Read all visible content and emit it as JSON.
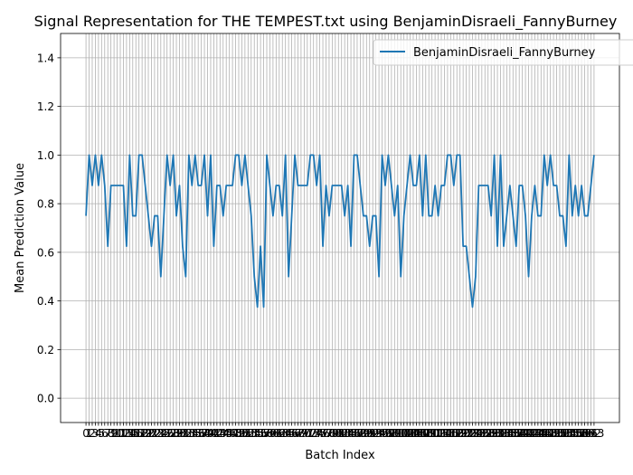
{
  "chart_data": {
    "type": "line",
    "title": "Signal Representation for THE TEMPEST.txt using BenjaminDisraeli_FannyBurney",
    "xlabel": "Batch Index",
    "ylabel": "Mean Prediction Value",
    "x": [
      0,
      1,
      2,
      3,
      4,
      5,
      6,
      7,
      8,
      9,
      10,
      11,
      12,
      13,
      14,
      15,
      16,
      17,
      18,
      19,
      20,
      21,
      22,
      23,
      24,
      25,
      26,
      27,
      28,
      29,
      30,
      31,
      32,
      33,
      34,
      35,
      36,
      37,
      38,
      39,
      40,
      41,
      42,
      43,
      44,
      45,
      46,
      47,
      48,
      49,
      50,
      51,
      52,
      53,
      54,
      55,
      56,
      57,
      58,
      59,
      60,
      61,
      62,
      63,
      64,
      65,
      66,
      67,
      68,
      69,
      70,
      71,
      72,
      73,
      74,
      75,
      76,
      77,
      78,
      79,
      80,
      81,
      82,
      83,
      84,
      85,
      86,
      87,
      88,
      89,
      90,
      91,
      92,
      93,
      94,
      95,
      96,
      97,
      98,
      99,
      100,
      101,
      102,
      103,
      104,
      105,
      106,
      107,
      108,
      109,
      110,
      111,
      112,
      113,
      114,
      115,
      116,
      117,
      118,
      119,
      120,
      121,
      122,
      123,
      124,
      125,
      126,
      127,
      128,
      129,
      130,
      131,
      132,
      133,
      134,
      135,
      136,
      137,
      138,
      139,
      140,
      141,
      142,
      143,
      144,
      145,
      146,
      147,
      148,
      149,
      150,
      151,
      152,
      153,
      154,
      155,
      156,
      157,
      158,
      159,
      160,
      161,
      162,
      163
    ],
    "series": [
      {
        "name": "BenjaminDisraeli_FannyBurney",
        "color": "#1f77b4",
        "values": [
          0.75,
          1.0,
          0.875,
          1.0,
          0.875,
          1.0,
          0.875,
          0.625,
          0.875,
          0.875,
          0.875,
          0.875,
          0.875,
          0.625,
          1.0,
          0.75,
          0.75,
          1.0,
          1.0,
          0.875,
          0.75,
          0.625,
          0.75,
          0.75,
          0.5,
          0.75,
          1.0,
          0.875,
          1.0,
          0.75,
          0.875,
          0.625,
          0.5,
          1.0,
          0.875,
          1.0,
          0.875,
          0.875,
          1.0,
          0.75,
          1.0,
          0.625,
          0.875,
          0.875,
          0.75,
          0.875,
          0.875,
          0.875,
          1.0,
          1.0,
          0.875,
          1.0,
          0.875,
          0.75,
          0.5,
          0.375,
          0.625,
          0.375,
          1.0,
          0.875,
          0.75,
          0.875,
          0.875,
          0.75,
          1.0,
          0.5,
          0.75,
          1.0,
          0.875,
          0.875,
          0.875,
          0.875,
          1.0,
          1.0,
          0.875,
          1.0,
          0.625,
          0.875,
          0.75,
          0.875,
          0.875,
          0.875,
          0.875,
          0.75,
          0.875,
          0.625,
          1.0,
          1.0,
          0.875,
          0.75,
          0.75,
          0.625,
          0.75,
          0.75,
          0.5,
          1.0,
          0.875,
          1.0,
          0.875,
          0.75,
          0.875,
          0.5,
          0.75,
          0.875,
          1.0,
          0.875,
          0.875,
          1.0,
          0.75,
          1.0,
          0.75,
          0.75,
          0.875,
          0.75,
          0.875,
          0.875,
          1.0,
          1.0,
          0.875,
          1.0,
          1.0,
          0.625,
          0.625,
          0.5,
          0.375,
          0.5,
          0.875,
          0.875,
          0.875,
          0.875,
          0.75,
          1.0,
          0.625,
          1.0,
          0.625,
          0.75,
          0.875,
          0.75,
          0.625,
          0.875,
          0.875,
          0.75,
          0.5,
          0.75,
          0.875,
          0.75,
          0.75,
          1.0,
          0.875,
          1.0,
          0.875,
          0.875,
          0.75,
          0.75,
          0.625,
          1.0,
          0.75,
          0.875,
          0.75,
          0.875,
          0.75,
          0.75,
          0.875,
          1.0
        ]
      }
    ],
    "xlim": [
      -8.15,
      171.15
    ],
    "ylim": [
      -0.1,
      1.5
    ],
    "yticks": [
      {
        "value": 0,
        "label": "0.0"
      },
      0.2,
      0.4,
      0.6,
      0.8,
      {
        "value": 1,
        "label": "1.0"
      },
      1.2,
      1.4
    ],
    "grid": true,
    "legend": "upper right"
  }
}
